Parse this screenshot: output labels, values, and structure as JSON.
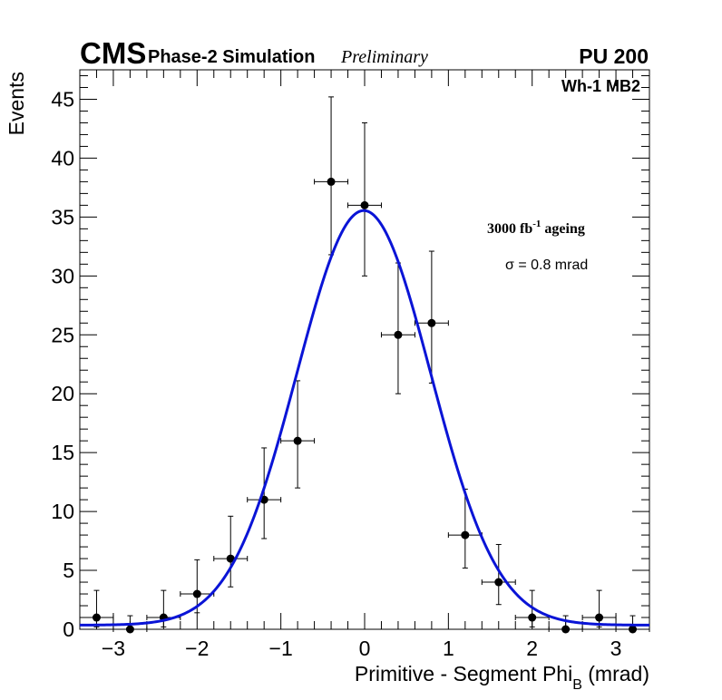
{
  "header": {
    "experiment": "CMS",
    "subtitle": "Phase-2 Simulation",
    "status": "Preliminary",
    "pileup": "PU 200"
  },
  "annotations": {
    "region": "Wh-1 MB2",
    "ageing_base": "3000 fb",
    "ageing_exp": "-1",
    "ageing_suffix": " ageing",
    "sigma": "σ = 0.8 mrad"
  },
  "chart_data": {
    "type": "scatter",
    "title": "",
    "xlabel": "Primitive - Segment Phi",
    "xlabel_sub": "B",
    "xlabel_unit": " (mrad)",
    "ylabel": "Events",
    "xlim": [
      -3.4,
      3.4
    ],
    "ylim": [
      0,
      47.5
    ],
    "x_ticks": [
      -3,
      -2,
      -1,
      0,
      1,
      2,
      3
    ],
    "x_tick_labels": [
      "−3",
      "−2",
      "−1",
      "0",
      "1",
      "2",
      "3"
    ],
    "y_ticks": [
      0,
      5,
      10,
      15,
      20,
      25,
      30,
      35,
      40,
      45
    ],
    "y_tick_labels": [
      "0",
      "5",
      "10",
      "15",
      "20",
      "25",
      "30",
      "35",
      "40",
      "45"
    ],
    "bin_half_width": 0.2,
    "series": [
      {
        "name": "Simulation",
        "marker": "filled-circle",
        "color": "#000000",
        "x": [
          -3.2,
          -2.8,
          -2.4,
          -2.0,
          -1.6,
          -1.2,
          -0.8,
          -0.4,
          0.0,
          0.4,
          0.8,
          1.2,
          1.6,
          2.0,
          2.4,
          2.8,
          3.2
        ],
        "y": [
          1,
          0,
          1,
          3,
          6,
          11,
          16,
          38,
          36,
          25,
          26,
          8,
          4,
          1,
          0,
          1,
          0
        ],
        "yerr_up": [
          2.3,
          1.15,
          2.3,
          2.9,
          3.6,
          4.4,
          5.1,
          7.2,
          7.0,
          6.1,
          6.1,
          3.9,
          3.2,
          2.3,
          1.15,
          2.3,
          1.15
        ],
        "yerr_down": [
          0.8,
          0,
          0.8,
          1.6,
          2.4,
          3.3,
          4.0,
          6.2,
          6.0,
          5.0,
          5.1,
          2.8,
          1.9,
          0.8,
          0,
          0.8,
          0
        ]
      }
    ],
    "fit": {
      "name": "Gaussian fit",
      "color": "#0a14d6",
      "amplitude": 35.2,
      "mean": -0.01,
      "sigma": 0.8,
      "constant": 0.35
    }
  }
}
